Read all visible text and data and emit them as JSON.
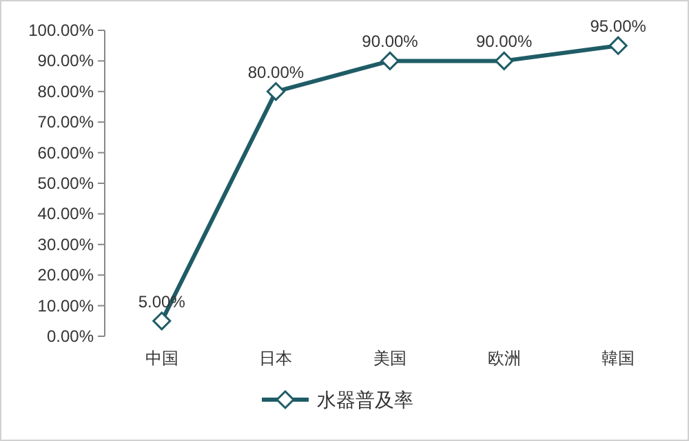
{
  "chart_data": {
    "type": "line",
    "categories": [
      "中国",
      "日本",
      "美国",
      "欧洲",
      "韓国"
    ],
    "series": [
      {
        "name": "水器普及率",
        "color": "#1f5c66",
        "values": [
          5,
          80,
          90,
          90,
          95
        ],
        "value_labels": [
          "5.00%",
          "80.00%",
          "90.00%",
          "90.00%",
          "95.00%"
        ]
      }
    ],
    "ylim": [
      0,
      100
    ],
    "yticks": [
      {
        "value": 0,
        "label": "0.00%"
      },
      {
        "value": 10,
        "label": "10.00%"
      },
      {
        "value": 20,
        "label": "20.00%"
      },
      {
        "value": 30,
        "label": "30.00%"
      },
      {
        "value": 40,
        "label": "40.00%"
      },
      {
        "value": 50,
        "label": "50.00%"
      },
      {
        "value": 60,
        "label": "60.00%"
      },
      {
        "value": 70,
        "label": "70.00%"
      },
      {
        "value": 80,
        "label": "80.00%"
      },
      {
        "value": 90,
        "label": "90.00%"
      },
      {
        "value": 100,
        "label": "100.00%"
      }
    ],
    "legend": "bottom",
    "marker": "diamond",
    "line_style": "solid"
  }
}
